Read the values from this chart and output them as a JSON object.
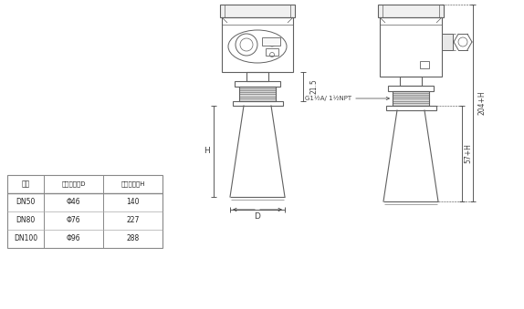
{
  "bg_color": "#ffffff",
  "line_color": "#606060",
  "dim_color": "#404040",
  "table": {
    "headers": [
      "法兰",
      "喇叭口直径D",
      "喇叭口高度H"
    ],
    "rows": [
      [
        "DN50",
        "Φ46",
        "140"
      ],
      [
        "DN80",
        "Φ76",
        "227"
      ],
      [
        "DN100",
        "Φ96",
        "288"
      ]
    ]
  },
  "dim_21_5": "21.5",
  "dim_H": "H",
  "dim_D": "D",
  "dim_204H": "204+H",
  "dim_57H": "57+H",
  "dim_G1": "G1½A/ 1½NPT"
}
